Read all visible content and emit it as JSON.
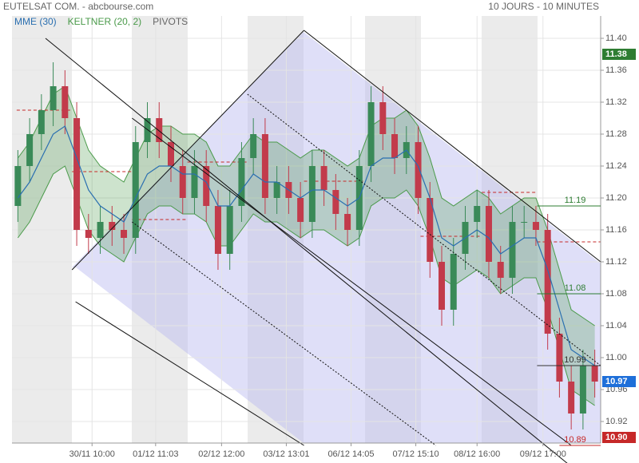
{
  "chart_data": {
    "type": "candlestick",
    "title": "EUTELSAT COM. - abcbourse.com",
    "subtitle": "10 JOURS - 10 MINUTES",
    "legend": [
      {
        "name": "MME (30)",
        "color": "#2a6fb0"
      },
      {
        "name": "KELTNER (20, 2)",
        "color": "#4a9a4a"
      },
      {
        "name": "PIVOTS",
        "color": "#666666"
      }
    ],
    "xlim": [
      -0.5,
      49.5
    ],
    "xticks": [
      {
        "value": 6.3,
        "label": "30/11 10:00"
      },
      {
        "value": 11.7,
        "label": "01/12 11:03"
      },
      {
        "value": 17.3,
        "label": "02/12 12:00"
      },
      {
        "value": 22.8,
        "label": "03/12 13:01"
      },
      {
        "value": 28.3,
        "label": "06/12 14:05"
      },
      {
        "value": 33.8,
        "label": "07/12 15:10"
      },
      {
        "value": 39.0,
        "label": "08/12 16:00"
      },
      {
        "value": 44.6,
        "label": "09/12 17:00"
      }
    ],
    "ylim": [
      10.893,
      11.428
    ],
    "yticks": [
      {
        "value": 11.4,
        "label": "11.40"
      },
      {
        "value": 11.36,
        "label": "11.36"
      },
      {
        "value": 11.32,
        "label": "11.32"
      },
      {
        "value": 11.28,
        "label": "11.28"
      },
      {
        "value": 11.24,
        "label": "11.24"
      },
      {
        "value": 11.2,
        "label": "11.20"
      },
      {
        "value": 11.16,
        "label": "11.16"
      },
      {
        "value": 11.12,
        "label": "11.12"
      },
      {
        "value": 11.08,
        "label": "11.08"
      },
      {
        "value": 11.04,
        "label": "11.04"
      },
      {
        "value": 11.0,
        "label": "11.00"
      },
      {
        "value": 10.96,
        "label": "10.96"
      },
      {
        "value": 10.92,
        "label": "10.92"
      }
    ],
    "grid": true,
    "up_color": "#3a8a58",
    "down_color": "#c23b4b",
    "open": [
      11.19,
      11.24,
      11.28,
      11.31,
      11.34,
      11.3,
      11.16,
      11.15,
      11.17,
      11.16,
      11.15,
      11.27,
      11.3,
      11.27,
      11.24,
      11.2,
      11.24,
      11.19,
      11.13,
      11.19,
      11.25,
      11.28,
      11.2,
      11.22,
      11.2,
      11.17,
      11.24,
      11.21,
      11.18,
      11.16,
      11.24,
      11.32,
      11.28,
      11.25,
      11.27,
      11.2,
      11.12,
      11.06,
      11.13,
      11.17,
      11.19,
      11.12,
      11.1,
      11.17,
      11.17,
      11.16,
      11.03,
      10.97,
      10.93,
      10.99
    ],
    "high": [
      11.26,
      11.3,
      11.33,
      11.37,
      11.36,
      11.32,
      11.18,
      11.19,
      11.19,
      11.18,
      11.29,
      11.32,
      11.32,
      11.29,
      11.26,
      11.26,
      11.26,
      11.21,
      11.21,
      11.27,
      11.3,
      11.3,
      11.24,
      11.24,
      11.22,
      11.26,
      11.26,
      11.23,
      11.2,
      11.26,
      11.34,
      11.34,
      11.3,
      11.29,
      11.29,
      11.22,
      11.14,
      11.15,
      11.19,
      11.21,
      11.21,
      11.14,
      11.19,
      11.19,
      11.19,
      11.18,
      11.05,
      10.99,
      11.01,
      11.01
    ],
    "low": [
      11.17,
      11.22,
      11.26,
      11.29,
      11.28,
      11.14,
      11.13,
      11.13,
      11.14,
      11.13,
      11.13,
      11.25,
      11.25,
      11.22,
      11.18,
      11.18,
      11.17,
      11.11,
      11.11,
      11.17,
      11.23,
      11.18,
      11.18,
      11.18,
      11.15,
      11.15,
      11.19,
      11.16,
      11.14,
      11.14,
      11.22,
      11.26,
      11.23,
      11.23,
      11.18,
      11.1,
      11.04,
      11.04,
      11.11,
      11.15,
      11.1,
      11.08,
      11.08,
      11.15,
      11.14,
      11.01,
      10.95,
      10.91,
      10.91,
      10.95
    ],
    "close": [
      11.24,
      11.28,
      11.31,
      11.34,
      11.3,
      11.16,
      11.15,
      11.17,
      11.16,
      11.15,
      11.27,
      11.3,
      11.27,
      11.24,
      11.2,
      11.24,
      11.19,
      11.13,
      11.19,
      11.25,
      11.28,
      11.2,
      11.22,
      11.2,
      11.17,
      11.24,
      11.21,
      11.18,
      11.16,
      11.24,
      11.32,
      11.28,
      11.25,
      11.27,
      11.2,
      11.12,
      11.06,
      11.13,
      11.17,
      11.19,
      11.12,
      11.1,
      11.17,
      11.17,
      11.16,
      11.03,
      10.97,
      10.93,
      10.99,
      10.97
    ],
    "mme": [
      11.2,
      11.22,
      11.25,
      11.28,
      11.29,
      11.25,
      11.21,
      11.19,
      11.18,
      11.17,
      11.2,
      11.23,
      11.24,
      11.24,
      11.23,
      11.23,
      11.22,
      11.19,
      11.19,
      11.21,
      11.23,
      11.22,
      11.22,
      11.21,
      11.2,
      11.21,
      11.21,
      11.2,
      11.19,
      11.2,
      11.24,
      11.25,
      11.25,
      11.26,
      11.24,
      11.2,
      11.15,
      11.14,
      11.15,
      11.16,
      11.15,
      11.13,
      11.14,
      11.15,
      11.15,
      11.11,
      11.06,
      11.01,
      11.0,
      10.99
    ],
    "keltner_upper": [
      11.25,
      11.27,
      11.3,
      11.33,
      11.34,
      11.3,
      11.26,
      11.24,
      11.23,
      11.22,
      11.25,
      11.28,
      11.29,
      11.29,
      11.28,
      11.28,
      11.27,
      11.24,
      11.24,
      11.26,
      11.28,
      11.27,
      11.27,
      11.26,
      11.25,
      11.26,
      11.26,
      11.25,
      11.24,
      11.25,
      11.29,
      11.3,
      11.3,
      11.31,
      11.29,
      11.25,
      11.2,
      11.19,
      11.2,
      11.21,
      11.2,
      11.18,
      11.19,
      11.2,
      11.2,
      11.16,
      11.11,
      11.06,
      11.05,
      11.04
    ],
    "keltner_lower": [
      11.15,
      11.17,
      11.2,
      11.23,
      11.24,
      11.2,
      11.16,
      11.14,
      11.13,
      11.12,
      11.15,
      11.18,
      11.19,
      11.19,
      11.18,
      11.18,
      11.17,
      11.14,
      11.14,
      11.16,
      11.18,
      11.17,
      11.17,
      11.16,
      11.15,
      11.16,
      11.16,
      11.15,
      11.14,
      11.15,
      11.19,
      11.2,
      11.2,
      11.21,
      11.19,
      11.15,
      11.1,
      11.09,
      11.1,
      11.11,
      11.1,
      11.08,
      11.09,
      11.1,
      11.1,
      11.06,
      11.01,
      10.96,
      10.95,
      10.94
    ],
    "trendlines": [
      {
        "x": [
          2.35,
          47.3
        ],
        "y": [
          11.4,
          10.86
        ],
        "style": "solid"
      },
      {
        "x": [
          4.6,
          24.3
        ],
        "y": [
          11.11,
          11.41
        ],
        "style": "solid"
      },
      {
        "x": [
          24.3,
          49.5
        ],
        "y": [
          11.41,
          11.12
        ],
        "style": "solid"
      },
      {
        "x": [
          4.9,
          24.3
        ],
        "y": [
          11.07,
          10.89
        ],
        "style": "solid"
      },
      {
        "x": [
          9.7,
          47.0
        ],
        "y": [
          11.3,
          10.89
        ],
        "style": "solid"
      },
      {
        "x": [
          19.5,
          49.5
        ],
        "y": [
          11.33,
          10.99
        ],
        "style": "dotted"
      },
      {
        "x": [
          9.7,
          35.5
        ],
        "y": [
          11.17,
          10.89
        ],
        "style": "dotted"
      }
    ],
    "pivots": [
      {
        "x": [
          -0.1,
          4.6
        ],
        "y": 11.31
      },
      {
        "x": [
          4.6,
          9.7
        ],
        "y": 11.233
      },
      {
        "x": [
          9.7,
          14.4
        ],
        "y": 11.173
      },
      {
        "x": [
          14.4,
          19.5
        ],
        "y": 11.245
      },
      {
        "x": [
          24.3,
          29.5
        ],
        "y": 11.221
      },
      {
        "x": [
          34.2,
          39.4
        ],
        "y": 11.152
      },
      {
        "x": [
          39.4,
          44.1
        ],
        "y": 11.207
      },
      {
        "x": [
          44.1,
          49.5
        ],
        "y": 11.145
      }
    ],
    "levels": [
      {
        "value": 11.19,
        "label": "11.19",
        "color": "#2e7d32",
        "x": [
          44.1,
          49.5
        ]
      },
      {
        "value": 11.08,
        "label": "11.08",
        "color": "#2e7d32",
        "x": [
          44.1,
          49.5
        ]
      },
      {
        "value": 10.99,
        "label": "10.99",
        "color": "#333333",
        "x": [
          44.1,
          49.5
        ]
      },
      {
        "value": 10.89,
        "label": "10.89",
        "color": "#c62828",
        "x": [
          46.0,
          49.5
        ]
      }
    ],
    "axis_marks": [
      {
        "value": 11.38,
        "label": "11.38",
        "color": "#2e7d32"
      },
      {
        "value": 10.97,
        "label": "10.97",
        "color": "#1e6fd9"
      },
      {
        "value": 10.9,
        "label": "10.90",
        "color": "#c62828"
      }
    ]
  }
}
